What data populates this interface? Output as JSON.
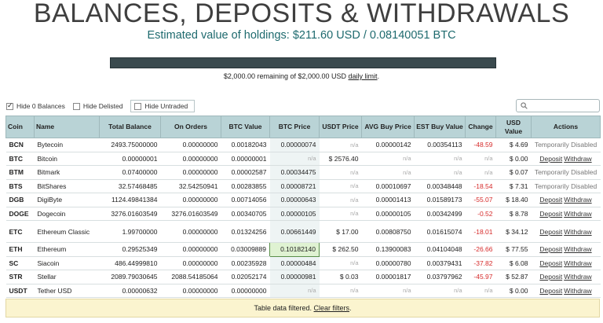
{
  "header": {
    "title": "BALANCES, DEPOSITS & WITHDRAWALS",
    "estimate": "Estimated value of holdings: $211.60 USD / 0.08140051 BTC",
    "limit_fraction_used": 0.0,
    "limit_text": "$2,000.00 remaining of $2,000.00 USD",
    "limit_link": "daily limit",
    "limit_suffix": "."
  },
  "filters": {
    "hide_zero": "Hide 0 Balances",
    "hide_zero_checked": true,
    "hide_delisted": "Hide Delisted",
    "hide_delisted_checked": false,
    "hide_untraded": "Hide Untraded",
    "hide_untraded_checked": false
  },
  "table": {
    "headers": [
      "Coin",
      "Name",
      "Total Balance",
      "On Orders",
      "BTC Value",
      "BTC Price",
      "USDT Price",
      "AVG Buy Price",
      "EST Buy Value",
      "Change",
      "USD Value",
      "Actions"
    ],
    "rows": [
      {
        "coin": "BCN",
        "name": "Bytecoin",
        "total": "2493.75000000",
        "orders": "0.00000000",
        "btc_value": "0.00182043",
        "btc_price": "0.00000074",
        "usdt_price": "n/a",
        "avg_buy": "0.00000142",
        "est_buy": "0.00354113",
        "change": "-48.59",
        "usd": "$ 4.69",
        "action": "Temporarily Disabled"
      },
      {
        "coin": "BTC",
        "name": "Bitcoin",
        "total": "0.00000001",
        "orders": "0.00000000",
        "btc_value": "0.00000001",
        "btc_price": "n/a",
        "usdt_price": "$ 2576.40",
        "avg_buy": "n/a",
        "est_buy": "n/a",
        "change": "n/a",
        "usd": "$ 0.00",
        "action": "links"
      },
      {
        "coin": "BTM",
        "name": "Bitmark",
        "total": "0.07400000",
        "orders": "0.00000000",
        "btc_value": "0.00002587",
        "btc_price": "0.00034475",
        "usdt_price": "n/a",
        "avg_buy": "n/a",
        "est_buy": "n/a",
        "change": "n/a",
        "usd": "$ 0.07",
        "action": "Temporarily Disabled"
      },
      {
        "coin": "BTS",
        "name": "BitShares",
        "total": "32.57468485",
        "orders": "32.54250941",
        "btc_value": "0.00283855",
        "btc_price": "0.00008721",
        "usdt_price": "n/a",
        "avg_buy": "0.00010697",
        "est_buy": "0.00348448",
        "change": "-18.54",
        "usd": "$ 7.31",
        "action": "Temporarily Disabled"
      },
      {
        "coin": "DGB",
        "name": "DigiByte",
        "total": "1124.49841384",
        "orders": "0.00000000",
        "btc_value": "0.00714056",
        "btc_price": "0.00000643",
        "usdt_price": "n/a",
        "avg_buy": "0.00001413",
        "est_buy": "0.01589173",
        "change": "-55.07",
        "usd": "$ 18.40",
        "action": "links"
      },
      {
        "coin": "DOGE",
        "name": "Dogecoin",
        "total": "3276.01603549",
        "orders": "3276.01603549",
        "btc_value": "0.00340705",
        "btc_price": "0.00000105",
        "usdt_price": "n/a",
        "avg_buy": "0.00000105",
        "est_buy": "0.00342499",
        "change": "-0.52",
        "usd": "$ 8.78",
        "action": "links"
      },
      {
        "coin": "ETC",
        "name": "Ethereum Classic",
        "total": "1.99700000",
        "orders": "0.00000000",
        "btc_value": "0.01324256",
        "btc_price": "0.00661449",
        "usdt_price": "$ 17.00",
        "avg_buy": "0.00808750",
        "est_buy": "0.01615074",
        "change": "-18.01",
        "usd": "$ 34.12",
        "action": "links"
      },
      {
        "coin": "ETH",
        "name": "Ethereum",
        "total": "0.29525349",
        "orders": "0.00000000",
        "btc_value": "0.03009889",
        "btc_price": "0.10182140",
        "usdt_price": "$ 262.50",
        "avg_buy": "0.13900083",
        "est_buy": "0.04104048",
        "change": "-26.66",
        "usd": "$ 77.55",
        "action": "links"
      },
      {
        "coin": "SC",
        "name": "Siacoin",
        "total": "486.44999810",
        "orders": "0.00000000",
        "btc_value": "0.00235928",
        "btc_price": "0.00000484",
        "usdt_price": "n/a",
        "avg_buy": "0.00000780",
        "est_buy": "0.00379431",
        "change": "-37.82",
        "usd": "$ 6.08",
        "action": "links"
      },
      {
        "coin": "STR",
        "name": "Stellar",
        "total": "2089.79030645",
        "orders": "2088.54185064",
        "btc_value": "0.02052174",
        "btc_price": "0.00000981",
        "usdt_price": "$ 0.03",
        "avg_buy": "0.00001817",
        "est_buy": "0.03797962",
        "change": "-45.97",
        "usd": "$ 52.87",
        "action": "links"
      },
      {
        "coin": "USDT",
        "name": "Tether USD",
        "total": "0.00000632",
        "orders": "0.00000000",
        "btc_value": "0.00000000",
        "btc_price": "n/a",
        "usdt_price": "n/a",
        "avg_buy": "n/a",
        "est_buy": "n/a",
        "change": "n/a",
        "usd": "$ 0.00",
        "action": "links"
      }
    ],
    "deposit_label": "Deposit",
    "withdraw_label": "Withdraw"
  },
  "footer": {
    "text": "Table data filtered.",
    "link": "Clear filters",
    "suffix": "."
  },
  "colors": {
    "header_bg": "#b9d3d6",
    "negative": "#d62b2b",
    "accent": "#1e6a6e",
    "notice_bg": "#fbf4cf"
  }
}
